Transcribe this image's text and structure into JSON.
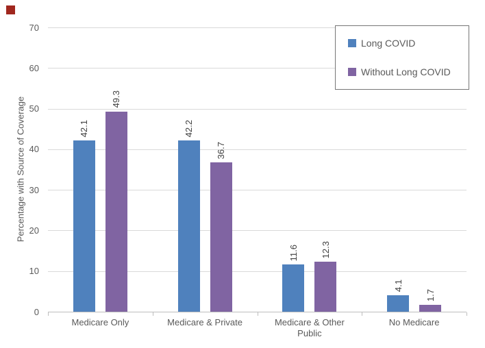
{
  "page": {
    "background": "#FFFFFF",
    "marker_color": "#A0271E"
  },
  "chart_data": {
    "type": "bar",
    "title": "",
    "categories": [
      "Medicare Only",
      "Medicare & Private",
      "Medicare & Other Public",
      "No Medicare"
    ],
    "series": [
      {
        "name": "Long COVID",
        "color": "#4F81BD",
        "values": [
          42.1,
          42.2,
          11.6,
          4.1
        ]
      },
      {
        "name": "Without Long COVID",
        "color": "#8064A2",
        "values": [
          49.3,
          36.7,
          12.3,
          1.7
        ]
      }
    ],
    "xlabel": "",
    "ylabel": "Percentage with Source of Coverage",
    "ylim": [
      0,
      70
    ],
    "yticks": [
      0,
      10,
      20,
      30,
      40,
      50,
      60,
      70
    ],
    "grid": true,
    "legend_position": "top-right",
    "data_labels": "values shown above bars, rotated 90 degrees, one decimal",
    "style_colors": {
      "gridline": "#D9D9D9",
      "axis_line": "#BDBDBD",
      "axis_text": "#595959",
      "data_label_text": "#404040",
      "legend_border": "#767676"
    }
  }
}
